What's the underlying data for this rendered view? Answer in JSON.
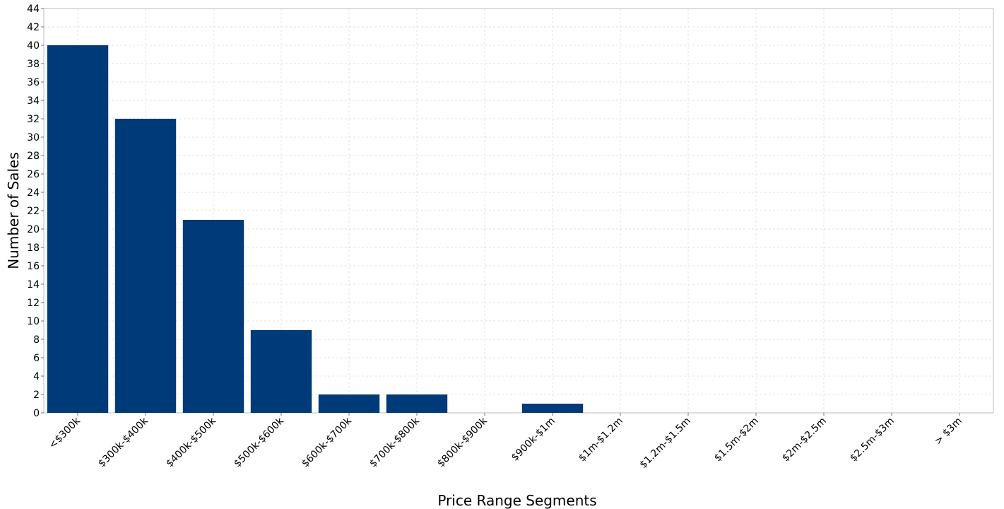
{
  "chart_data": {
    "type": "bar",
    "title": "",
    "xlabel": "Price Range Segments",
    "ylabel": "Number of Sales",
    "categories": [
      "<$300k",
      "$300k-$400k",
      "$400k-$500k",
      "$500k-$600k",
      "$600k-$700k",
      "$700k-$800k",
      "$800k-$900k",
      "$900k-$1m",
      "$1m-$1.2m",
      "$1.2m-$1.5m",
      "$1.5m-$2m",
      "$2m-$2.5m",
      "$2.5m-$3m",
      "> $3m"
    ],
    "values": [
      40,
      32,
      21,
      9,
      2,
      2,
      0,
      1,
      0,
      0,
      0,
      0,
      0,
      0
    ],
    "ylim": [
      0,
      44
    ],
    "yticks": [
      0,
      2,
      4,
      6,
      8,
      10,
      12,
      14,
      16,
      18,
      20,
      22,
      24,
      26,
      28,
      30,
      32,
      34,
      36,
      38,
      40,
      42,
      44
    ],
    "grid": true,
    "legend": "none",
    "bar_color": "#003a78"
  }
}
